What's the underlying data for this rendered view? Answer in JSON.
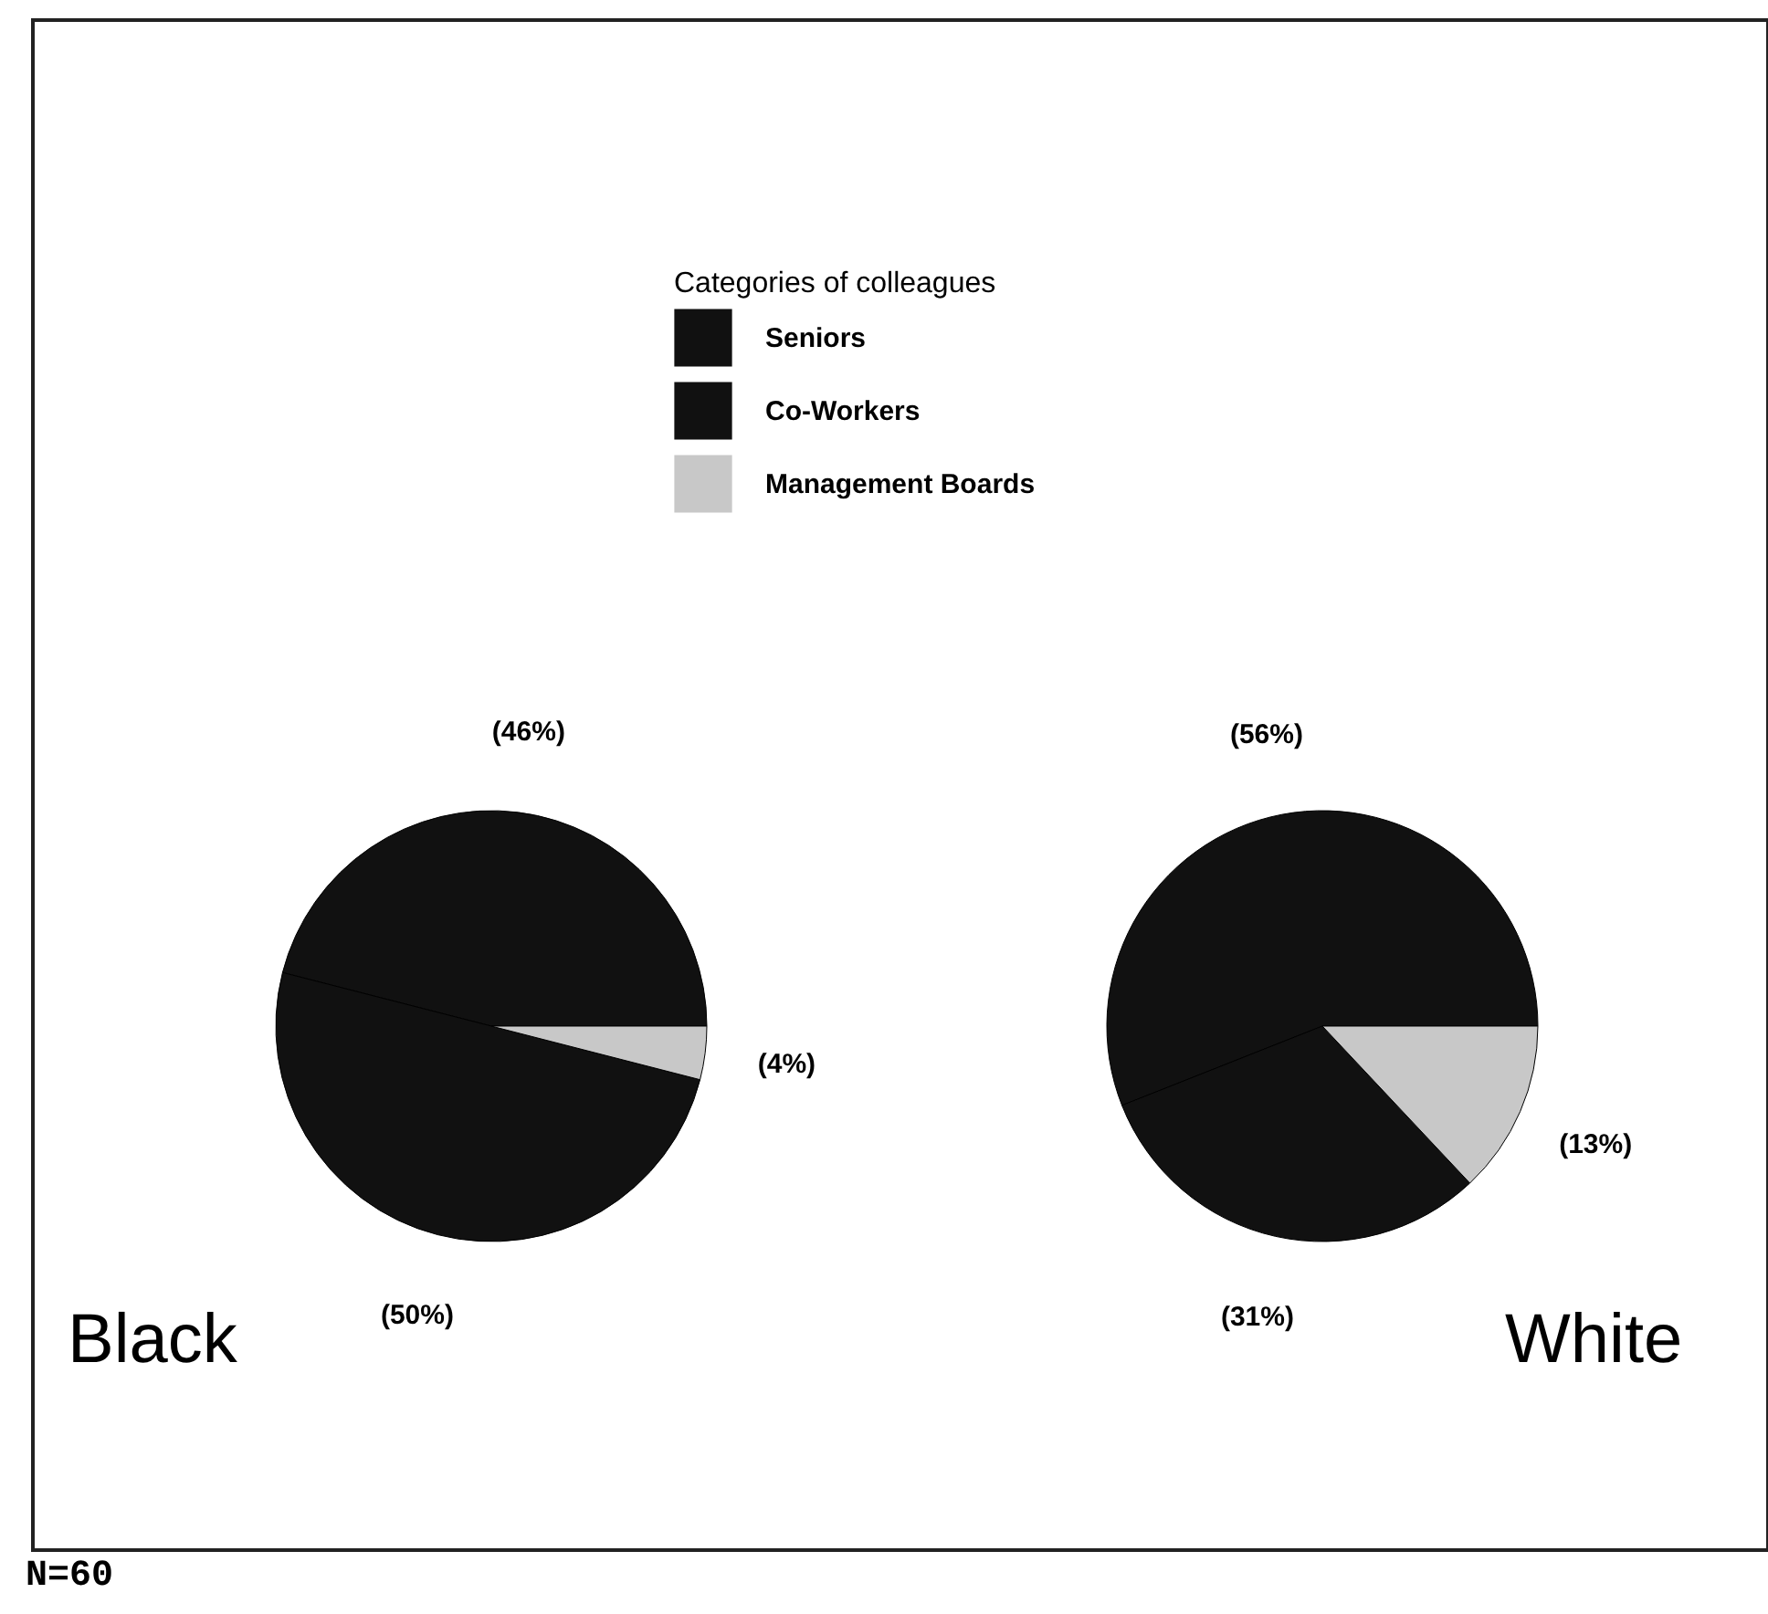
{
  "chart_data": {
    "type": "pie",
    "legend_title": "Categories of colleagues",
    "legend": "top",
    "categories": [
      "Seniors",
      "Co-Workers",
      "Management Boards"
    ],
    "colors": [
      "#111111",
      "#111111",
      "#c8c8c8"
    ],
    "annotations": [
      "N=60"
    ],
    "series": [
      {
        "name": "Black",
        "values": [
          46,
          50,
          4
        ],
        "value_labels": [
          "(46%)",
          "(50%)",
          "(4%)"
        ]
      },
      {
        "name": "White",
        "values": [
          56,
          31,
          13
        ],
        "value_labels": [
          "(56%)",
          "(31%)",
          "(13%)"
        ]
      }
    ]
  }
}
